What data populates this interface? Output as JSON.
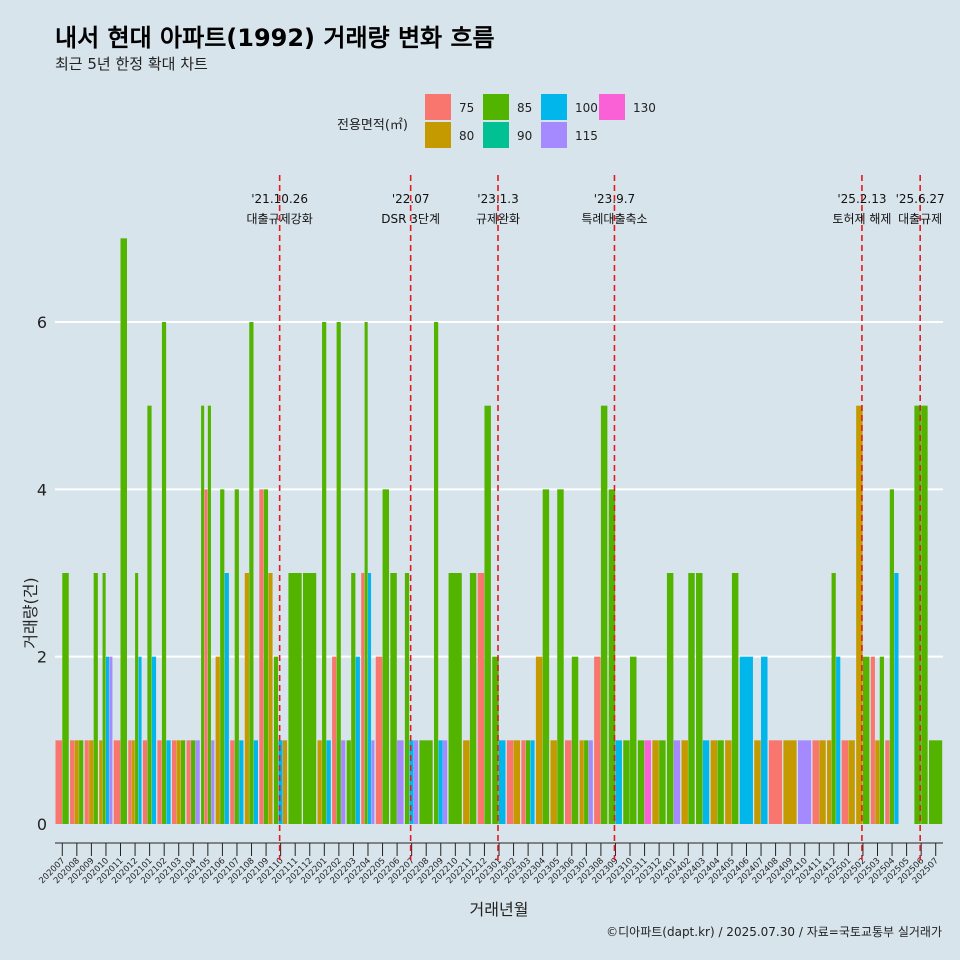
{
  "title": "내서 현대 아파트(1992) 거래량 변화 흐름",
  "subtitle": "최근 5년 한정 확대 차트",
  "caption": "©디아파트(dapt.kr) / 2025.07.30 / 자료=국토교통부 실거래가",
  "colors": {
    "background": "#d8e4ec",
    "grid": "#ffffff",
    "event_line": "#e41a1c",
    "75": "#F8766D",
    "80": "#C49A00",
    "85": "#53B400",
    "90": "#00C094",
    "100": "#00B6EB",
    "115": "#A58AFF",
    "130": "#FB61D7"
  },
  "chart_data": {
    "type": "bar",
    "title": "내서 현대 아파트(1992) 거래량 변화 흐름",
    "subtitle": "최근 5년 한정 확대 차트",
    "xlabel": "거래년월",
    "ylabel": "거래량(건)",
    "ylim": [
      0,
      7.4
    ],
    "yticks": [
      0,
      2,
      4,
      6
    ],
    "grid": true,
    "legend": {
      "title": "전용면적(㎡)",
      "position": "top",
      "entries": [
        "75",
        "80",
        "85",
        "90",
        "100",
        "115",
        "130"
      ]
    },
    "categories": [
      "202007",
      "202008",
      "202009",
      "202010",
      "202011",
      "202012",
      "202101",
      "202102",
      "202103",
      "202104",
      "202105",
      "202106",
      "202107",
      "202108",
      "202109",
      "202110",
      "202111",
      "202112",
      "202201",
      "202202",
      "202203",
      "202204",
      "202205",
      "202206",
      "202207",
      "202208",
      "202209",
      "202210",
      "202211",
      "202212",
      "202301",
      "202302",
      "202303",
      "202304",
      "202305",
      "202306",
      "202307",
      "202308",
      "202309",
      "202310",
      "202311",
      "202312",
      "202401",
      "202402",
      "202403",
      "202404",
      "202405",
      "202406",
      "202407",
      "202408",
      "202409",
      "202410",
      "202411",
      "202412",
      "202501",
      "202502",
      "202503",
      "202504",
      "202505",
      "202506",
      "202507"
    ],
    "months": [
      {
        "m": "202007",
        "bars": [
          {
            "a": "75",
            "v": 1
          },
          {
            "a": "85",
            "v": 3
          }
        ]
      },
      {
        "m": "202008",
        "bars": [
          {
            "a": "75",
            "v": 1
          },
          {
            "a": "80",
            "v": 1
          },
          {
            "a": "85",
            "v": 1
          }
        ]
      },
      {
        "m": "202009",
        "bars": [
          {
            "a": "75",
            "v": 1
          },
          {
            "a": "80",
            "v": 1
          },
          {
            "a": "85",
            "v": 3
          }
        ]
      },
      {
        "m": "202010",
        "bars": [
          {
            "a": "80",
            "v": 1
          },
          {
            "a": "85",
            "v": 3
          },
          {
            "a": "100",
            "v": 2
          },
          {
            "a": "115",
            "v": 2
          }
        ]
      },
      {
        "m": "202011",
        "bars": [
          {
            "a": "75",
            "v": 1
          },
          {
            "a": "85",
            "v": 7
          }
        ]
      },
      {
        "m": "202012",
        "bars": [
          {
            "a": "75",
            "v": 1
          },
          {
            "a": "80",
            "v": 1
          },
          {
            "a": "85",
            "v": 3
          },
          {
            "a": "100",
            "v": 2
          }
        ]
      },
      {
        "m": "202101",
        "bars": [
          {
            "a": "75",
            "v": 1
          },
          {
            "a": "85",
            "v": 5
          },
          {
            "a": "100",
            "v": 2
          }
        ]
      },
      {
        "m": "202102",
        "bars": [
          {
            "a": "75",
            "v": 1
          },
          {
            "a": "85",
            "v": 6
          },
          {
            "a": "100",
            "v": 1
          }
        ]
      },
      {
        "m": "202103",
        "bars": [
          {
            "a": "75",
            "v": 1
          },
          {
            "a": "80",
            "v": 1
          },
          {
            "a": "85",
            "v": 1
          }
        ]
      },
      {
        "m": "202104",
        "bars": [
          {
            "a": "75",
            "v": 1
          },
          {
            "a": "85",
            "v": 1
          },
          {
            "a": "115",
            "v": 1
          }
        ]
      },
      {
        "m": "202105",
        "bars": [
          {
            "a": "85",
            "v": 5
          },
          {
            "a": "75",
            "v": 4
          },
          {
            "a": "85",
            "v": 5
          },
          {
            "a": "115",
            "v": 1
          }
        ]
      },
      {
        "m": "202106",
        "bars": [
          {
            "a": "80",
            "v": 2
          },
          {
            "a": "85",
            "v": 4
          },
          {
            "a": "100",
            "v": 3
          }
        ]
      },
      {
        "m": "202107",
        "bars": [
          {
            "a": "75",
            "v": 1
          },
          {
            "a": "85",
            "v": 4
          },
          {
            "a": "100",
            "v": 1
          }
        ]
      },
      {
        "m": "202108",
        "bars": [
          {
            "a": "80",
            "v": 3
          },
          {
            "a": "85",
            "v": 6
          },
          {
            "a": "100",
            "v": 1
          }
        ]
      },
      {
        "m": "202109",
        "bars": [
          {
            "a": "75",
            "v": 4
          },
          {
            "a": "85",
            "v": 4
          },
          {
            "a": "80",
            "v": 3
          }
        ]
      },
      {
        "m": "202110",
        "bars": [
          {
            "a": "85",
            "v": 2
          },
          {
            "a": "100",
            "v": 1
          },
          {
            "a": "80",
            "v": 1
          }
        ]
      },
      {
        "m": "202111",
        "bars": [
          {
            "a": "85",
            "v": 3
          }
        ]
      },
      {
        "m": "202112",
        "bars": [
          {
            "a": "85",
            "v": 3
          }
        ]
      },
      {
        "m": "202201",
        "bars": [
          {
            "a": "80",
            "v": 1
          },
          {
            "a": "85",
            "v": 6
          },
          {
            "a": "100",
            "v": 1
          }
        ]
      },
      {
        "m": "202202",
        "bars": [
          {
            "a": "75",
            "v": 2
          },
          {
            "a": "85",
            "v": 6
          },
          {
            "a": "115",
            "v": 1
          }
        ]
      },
      {
        "m": "202203",
        "bars": [
          {
            "a": "85",
            "v": 1
          },
          {
            "a": "85",
            "v": 3
          },
          {
            "a": "100",
            "v": 2
          }
        ]
      },
      {
        "m": "202204",
        "bars": [
          {
            "a": "75",
            "v": 3
          },
          {
            "a": "85",
            "v": 6
          },
          {
            "a": "100",
            "v": 3
          },
          {
            "a": "115",
            "v": 1
          }
        ]
      },
      {
        "m": "202205",
        "bars": [
          {
            "a": "75",
            "v": 2
          },
          {
            "a": "85",
            "v": 4
          }
        ]
      },
      {
        "m": "202206",
        "bars": [
          {
            "a": "85",
            "v": 3
          },
          {
            "a": "115",
            "v": 1
          }
        ]
      },
      {
        "m": "202207",
        "bars": [
          {
            "a": "85",
            "v": 3
          },
          {
            "a": "100",
            "v": 1
          },
          {
            "a": "115",
            "v": 1
          }
        ]
      },
      {
        "m": "202208",
        "bars": [
          {
            "a": "85",
            "v": 1
          }
        ]
      },
      {
        "m": "202209",
        "bars": [
          {
            "a": "85",
            "v": 6
          },
          {
            "a": "100",
            "v": 1
          },
          {
            "a": "115",
            "v": 1
          }
        ]
      },
      {
        "m": "202210",
        "bars": [
          {
            "a": "85",
            "v": 3
          }
        ]
      },
      {
        "m": "202211",
        "bars": [
          {
            "a": "80",
            "v": 1
          },
          {
            "a": "85",
            "v": 3
          }
        ]
      },
      {
        "m": "202212",
        "bars": [
          {
            "a": "75",
            "v": 3
          },
          {
            "a": "85",
            "v": 5
          }
        ]
      },
      {
        "m": "202301",
        "bars": [
          {
            "a": "85",
            "v": 2
          },
          {
            "a": "100",
            "v": 1
          }
        ]
      },
      {
        "m": "202302",
        "bars": [
          {
            "a": "75",
            "v": 1
          },
          {
            "a": "80",
            "v": 1
          }
        ]
      },
      {
        "m": "202303",
        "bars": [
          {
            "a": "75",
            "v": 1
          },
          {
            "a": "85",
            "v": 1
          },
          {
            "a": "100",
            "v": 1
          }
        ]
      },
      {
        "m": "202304",
        "bars": [
          {
            "a": "80",
            "v": 2
          },
          {
            "a": "85",
            "v": 4
          }
        ]
      },
      {
        "m": "202305",
        "bars": [
          {
            "a": "80",
            "v": 1
          },
          {
            "a": "85",
            "v": 4
          }
        ]
      },
      {
        "m": "202306",
        "bars": [
          {
            "a": "75",
            "v": 1
          },
          {
            "a": "85",
            "v": 2
          }
        ]
      },
      {
        "m": "202307",
        "bars": [
          {
            "a": "80",
            "v": 1
          },
          {
            "a": "85",
            "v": 1
          },
          {
            "a": "115",
            "v": 1
          }
        ]
      },
      {
        "m": "202308",
        "bars": [
          {
            "a": "75",
            "v": 2
          },
          {
            "a": "85",
            "v": 5
          }
        ]
      },
      {
        "m": "202309",
        "bars": [
          {
            "a": "85",
            "v": 4
          },
          {
            "a": "100",
            "v": 1
          }
        ]
      },
      {
        "m": "202310",
        "bars": [
          {
            "a": "85",
            "v": 1
          },
          {
            "a": "85",
            "v": 2
          }
        ]
      },
      {
        "m": "202311",
        "bars": [
          {
            "a": "85",
            "v": 1
          },
          {
            "a": "130",
            "v": 1
          }
        ]
      },
      {
        "m": "202312",
        "bars": [
          {
            "a": "80",
            "v": 1
          },
          {
            "a": "85",
            "v": 1
          }
        ]
      },
      {
        "m": "202401",
        "bars": [
          {
            "a": "85",
            "v": 3
          },
          {
            "a": "115",
            "v": 1
          }
        ]
      },
      {
        "m": "202402",
        "bars": [
          {
            "a": "80",
            "v": 1
          },
          {
            "a": "85",
            "v": 3
          }
        ]
      },
      {
        "m": "202403",
        "bars": [
          {
            "a": "85",
            "v": 3
          },
          {
            "a": "100",
            "v": 1
          }
        ]
      },
      {
        "m": "202404",
        "bars": [
          {
            "a": "80",
            "v": 1
          },
          {
            "a": "85",
            "v": 1
          }
        ]
      },
      {
        "m": "202405",
        "bars": [
          {
            "a": "80",
            "v": 1
          },
          {
            "a": "85",
            "v": 3
          }
        ]
      },
      {
        "m": "202406",
        "bars": [
          {
            "a": "100",
            "v": 2
          }
        ]
      },
      {
        "m": "202407",
        "bars": [
          {
            "a": "80",
            "v": 1
          },
          {
            "a": "100",
            "v": 2
          }
        ]
      },
      {
        "m": "202408",
        "bars": [
          {
            "a": "75",
            "v": 1
          }
        ]
      },
      {
        "m": "202409",
        "bars": [
          {
            "a": "80",
            "v": 1
          }
        ]
      },
      {
        "m": "202410",
        "bars": [
          {
            "a": "115",
            "v": 1
          }
        ]
      },
      {
        "m": "202411",
        "bars": [
          {
            "a": "75",
            "v": 1
          },
          {
            "a": "80",
            "v": 1
          }
        ]
      },
      {
        "m": "202412",
        "bars": [
          {
            "a": "80",
            "v": 1
          },
          {
            "a": "85",
            "v": 3
          },
          {
            "a": "100",
            "v": 2
          }
        ]
      },
      {
        "m": "202501",
        "bars": [
          {
            "a": "75",
            "v": 1
          },
          {
            "a": "80",
            "v": 1
          }
        ]
      },
      {
        "m": "202502",
        "bars": [
          {
            "a": "80",
            "v": 5
          },
          {
            "a": "85",
            "v": 2
          }
        ]
      },
      {
        "m": "202503",
        "bars": [
          {
            "a": "75",
            "v": 2
          },
          {
            "a": "80",
            "v": 1
          },
          {
            "a": "85",
            "v": 2
          }
        ]
      },
      {
        "m": "202504",
        "bars": [
          {
            "a": "75",
            "v": 1
          },
          {
            "a": "85",
            "v": 4
          },
          {
            "a": "100",
            "v": 3
          }
        ]
      },
      {
        "m": "202505",
        "bars": []
      },
      {
        "m": "202506",
        "bars": [
          {
            "a": "85",
            "v": 5
          },
          {
            "a": "85",
            "v": 5
          }
        ]
      },
      {
        "m": "202507",
        "bars": [
          {
            "a": "85",
            "v": 1
          }
        ]
      }
    ],
    "events": [
      {
        "month": "202110",
        "date": "'21.10.26",
        "label": "대출규제강화"
      },
      {
        "month": "202207",
        "date": "'22.07",
        "label": "DSR 3단계"
      },
      {
        "month": "202301",
        "date": "'23.1.3",
        "label": "규제완화"
      },
      {
        "month": "202309",
        "date": "'23.9.7",
        "label": "특례대출축소"
      },
      {
        "month": "202502",
        "date": "'25.2.13",
        "label": "토허제 해제"
      },
      {
        "month": "202506",
        "date": "'25.6.27",
        "label": "대출규제"
      }
    ]
  }
}
